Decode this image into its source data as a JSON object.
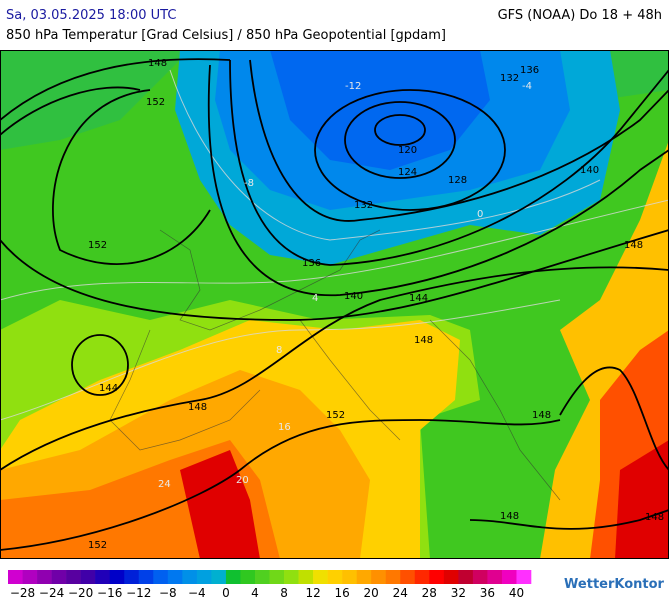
{
  "header": {
    "timestamp": "Sa, 03.05.2025 18:00 UTC",
    "model": "GFS (NOAA) Do 18 + 48h",
    "subtitle": "850 hPa Temperatur [Grad Celsius] / 850 hPa Geopotential [gpdam]"
  },
  "map": {
    "geopotential_labels": [
      148,
      152,
      152,
      144,
      148,
      120,
      124,
      128,
      132,
      136,
      140,
      144,
      148,
      152,
      148,
      148,
      148,
      152,
      136,
      132,
      140,
      148
    ],
    "temperature_labels": [
      "-12",
      "-8",
      "-4",
      "0",
      "4",
      "8",
      "16",
      "20",
      "24"
    ]
  },
  "legend": {
    "colors": [
      "#d000d0",
      "#b000c0",
      "#9000b0",
      "#7000a8",
      "#5800a0",
      "#4000a8",
      "#2000b8",
      "#0000c8",
      "#0020d8",
      "#0040e8",
      "#0060f0",
      "#0078f0",
      "#0090e8",
      "#00a0e0",
      "#00b0d0",
      "#10c030",
      "#30c820",
      "#50d020",
      "#70d818",
      "#90e010",
      "#c0e000",
      "#f0e000",
      "#ffd000",
      "#ffc000",
      "#ffa800",
      "#ff9000",
      "#ff7800",
      "#ff5000",
      "#ff2800",
      "#ff0000",
      "#e00000",
      "#c00030",
      "#d00060",
      "#e00090",
      "#f000c0",
      "#ff30ff"
    ],
    "labels": [
      "−28",
      "−24",
      "−20",
      "−16",
      "−12",
      "−8",
      "−4",
      "0",
      "4",
      "8",
      "12",
      "16",
      "20",
      "24",
      "28",
      "32",
      "36",
      "40"
    ]
  },
  "brand": "WetterKontor"
}
